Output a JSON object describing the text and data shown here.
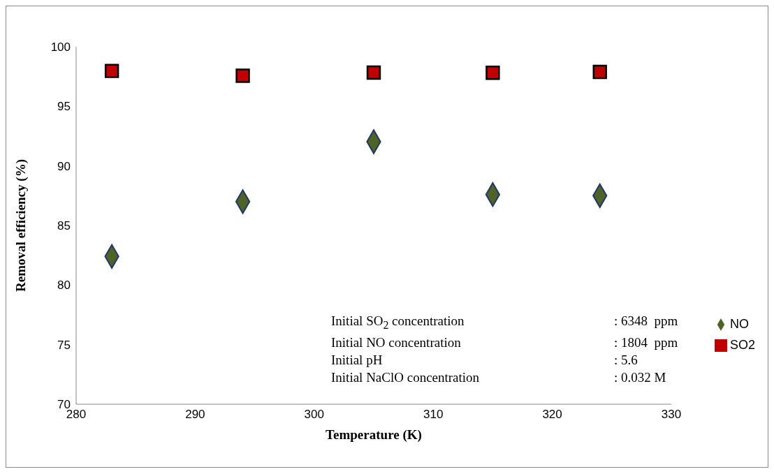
{
  "chart_data": {
    "type": "scatter",
    "xlabel": "Temperature (K)",
    "ylabel": "Removal efficiency (%)",
    "x": [
      283,
      294,
      305,
      315,
      324
    ],
    "series": [
      {
        "name": "SO2",
        "color": "#c00000",
        "marker": "square",
        "values": [
          97.97,
          97.57,
          97.83,
          97.82,
          97.89
        ]
      },
      {
        "name": "NO",
        "color": "#4f6228",
        "marker": "diamond",
        "values": [
          82.4,
          87.0,
          92.03,
          87.6,
          87.5
        ]
      }
    ],
    "xlim": [
      280,
      330
    ],
    "xticks": [
      280,
      290,
      300,
      310,
      320,
      330
    ],
    "ylim": [
      70,
      100
    ],
    "yticks": [
      70,
      75,
      80,
      85,
      90,
      95,
      100
    ],
    "grid": false,
    "legend": "right",
    "annotations": [
      "Initial SO$_{2}$ concentration",
      ": 6348  ppm",
      "Initial NO concentration",
      ": 1804  ppm",
      "Initial pH",
      ": 5.6",
      "Initial NaClO concentration",
      ": 0.032 M"
    ]
  }
}
